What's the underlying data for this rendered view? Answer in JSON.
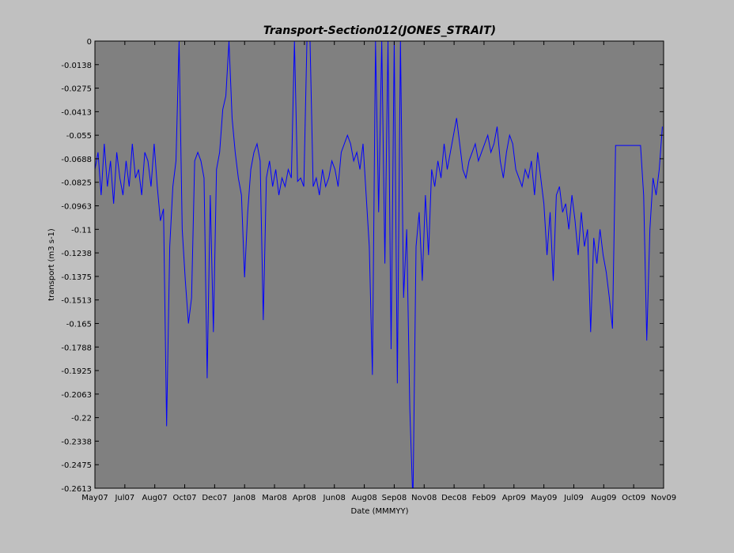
{
  "chart_data": {
    "type": "line",
    "title": "Transport-Section012(JONES_STRAIT)",
    "xlabel": "Date (MMMYY)",
    "ylabel": "transport (m3 s-1)",
    "color": "#0000ff",
    "xlim": [
      0,
      912
    ],
    "ylim": [
      -0.26125,
      0
    ],
    "xticks": [
      {
        "value": 0,
        "label": "May07"
      },
      {
        "value": 48,
        "label": "Jul07"
      },
      {
        "value": 96,
        "label": "Aug07"
      },
      {
        "value": 144,
        "label": "Oct07"
      },
      {
        "value": 192,
        "label": "Dec07"
      },
      {
        "value": 240,
        "label": "Jan08"
      },
      {
        "value": 288,
        "label": "Mar08"
      },
      {
        "value": 336,
        "label": "Apr08"
      },
      {
        "value": 384,
        "label": "Jun08"
      },
      {
        "value": 432,
        "label": "Aug08"
      },
      {
        "value": 480,
        "label": "Sep08"
      },
      {
        "value": 528,
        "label": "Nov08"
      },
      {
        "value": 576,
        "label": "Dec08"
      },
      {
        "value": 624,
        "label": "Feb09"
      },
      {
        "value": 672,
        "label": "Apr09"
      },
      {
        "value": 720,
        "label": "May09"
      },
      {
        "value": 768,
        "label": "Jul09"
      },
      {
        "value": 816,
        "label": "Aug09"
      },
      {
        "value": 864,
        "label": "Oct09"
      },
      {
        "value": 912,
        "label": "Nov09"
      }
    ],
    "yticks": [
      0,
      {
        "value": -0.01375,
        "label": "-0.0138"
      },
      -0.0275,
      {
        "value": -0.04125,
        "label": "-0.0413"
      },
      -0.055,
      {
        "value": -0.06875,
        "label": "-0.0688"
      },
      -0.0825,
      {
        "value": -0.09625,
        "label": "-0.0963"
      },
      -0.11,
      {
        "value": -0.12375,
        "label": "-0.1238"
      },
      -0.1375,
      {
        "value": -0.15125,
        "label": "-0.1513"
      },
      -0.165,
      {
        "value": -0.17875,
        "label": "-0.1788"
      },
      -0.1925,
      {
        "value": -0.20625,
        "label": "-0.2063"
      },
      -0.22,
      {
        "value": -0.23375,
        "label": "-0.2338"
      },
      -0.2475,
      {
        "value": -0.26125,
        "label": "-0.2613"
      }
    ],
    "x": [
      0,
      5,
      10,
      15,
      20,
      25,
      30,
      35,
      40,
      45,
      50,
      55,
      60,
      65,
      70,
      75,
      80,
      85,
      90,
      95,
      100,
      105,
      110,
      115,
      120,
      125,
      130,
      135,
      140,
      145,
      150,
      155,
      160,
      165,
      170,
      175,
      180,
      185,
      190,
      195,
      200,
      205,
      210,
      215,
      220,
      225,
      230,
      235,
      240,
      245,
      250,
      255,
      260,
      265,
      270,
      275,
      280,
      285,
      290,
      295,
      300,
      305,
      310,
      315,
      320,
      325,
      330,
      335,
      340,
      345,
      350,
      355,
      360,
      365,
      370,
      375,
      380,
      385,
      390,
      395,
      400,
      405,
      410,
      415,
      420,
      425,
      430,
      435,
      440,
      445,
      450,
      455,
      460,
      465,
      470,
      475,
      480,
      485,
      490,
      495,
      500,
      505,
      510,
      515,
      520,
      525,
      530,
      535,
      540,
      545,
      550,
      555,
      560,
      565,
      570,
      575,
      580,
      585,
      590,
      595,
      600,
      605,
      610,
      615,
      620,
      625,
      630,
      635,
      640,
      645,
      650,
      655,
      660,
      665,
      670,
      675,
      680,
      685,
      690,
      695,
      700,
      705,
      710,
      715,
      720,
      725,
      730,
      735,
      740,
      745,
      750,
      755,
      760,
      765,
      770,
      775,
      780,
      785,
      790,
      795,
      800,
      805,
      810,
      815,
      820,
      825,
      830,
      835,
      840,
      845,
      850,
      855,
      860,
      865,
      870,
      875,
      880,
      885,
      890,
      895,
      900,
      905,
      910
    ],
    "values": [
      -0.075,
      -0.065,
      -0.09,
      -0.06,
      -0.085,
      -0.07,
      -0.095,
      -0.065,
      -0.08,
      -0.09,
      -0.07,
      -0.085,
      -0.06,
      -0.08,
      -0.075,
      -0.09,
      -0.065,
      -0.07,
      -0.085,
      -0.06,
      -0.085,
      -0.105,
      -0.098,
      -0.225,
      -0.12,
      -0.085,
      -0.07,
      0,
      -0.11,
      -0.14,
      -0.165,
      -0.15,
      -0.07,
      -0.065,
      -0.07,
      -0.08,
      -0.197,
      -0.09,
      -0.17,
      -0.075,
      -0.065,
      -0.04,
      -0.032,
      0,
      -0.045,
      -0.065,
      -0.08,
      -0.09,
      -0.138,
      -0.1,
      -0.075,
      -0.065,
      -0.06,
      -0.07,
      -0.163,
      -0.08,
      -0.07,
      -0.085,
      -0.075,
      -0.09,
      -0.08,
      -0.085,
      -0.075,
      -0.08,
      0,
      -0.082,
      -0.08,
      -0.085,
      0,
      0,
      -0.085,
      -0.08,
      -0.09,
      -0.075,
      -0.085,
      -0.08,
      -0.07,
      -0.075,
      -0.085,
      -0.065,
      -0.06,
      -0.055,
      -0.06,
      -0.07,
      -0.065,
      -0.075,
      -0.06,
      -0.09,
      -0.12,
      -0.195,
      0,
      -0.1,
      0,
      -0.13,
      0,
      -0.18,
      0,
      -0.2,
      0,
      -0.15,
      -0.11,
      -0.215,
      -0.27,
      -0.12,
      -0.1,
      -0.14,
      -0.09,
      -0.125,
      -0.075,
      -0.085,
      -0.07,
      -0.08,
      -0.06,
      -0.075,
      -0.065,
      -0.055,
      -0.045,
      -0.06,
      -0.075,
      -0.08,
      -0.07,
      -0.065,
      -0.06,
      -0.07,
      -0.065,
      -0.06,
      -0.055,
      -0.065,
      -0.06,
      -0.05,
      -0.07,
      -0.08,
      -0.065,
      -0.055,
      -0.06,
      -0.075,
      -0.08,
      -0.085,
      -0.075,
      -0.08,
      -0.07,
      -0.09,
      -0.065,
      -0.08,
      -0.095,
      -0.125,
      -0.1,
      -0.14,
      -0.09,
      -0.085,
      -0.1,
      -0.095,
      -0.11,
      -0.09,
      -0.105,
      -0.125,
      -0.1,
      -0.12,
      -0.11,
      -0.17,
      -0.115,
      -0.13,
      -0.11,
      -0.125,
      -0.135,
      -0.15,
      -0.168,
      -0.061,
      -0.061,
      -0.061,
      -0.061,
      -0.061,
      -0.061,
      -0.061,
      -0.061,
      -0.061,
      -0.09,
      -0.175,
      -0.11,
      -0.08,
      -0.09,
      -0.075,
      -0.05
    ]
  }
}
